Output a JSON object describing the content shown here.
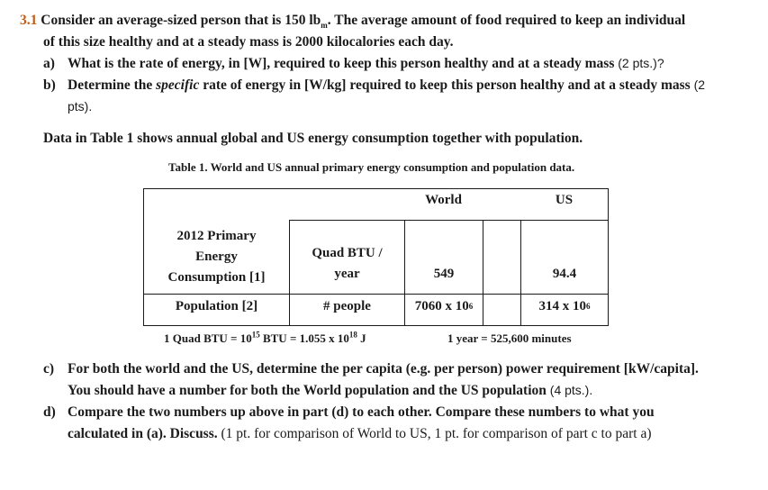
{
  "problem": {
    "number": "3.1",
    "intro_line1": "Consider an average-sized person that is 150 lb",
    "intro_sub": "m",
    "intro_line1_end": ".  The average amount of food required to keep an individual",
    "intro_line2": "of this size healthy and at a steady mass is 2000 kilocalories each day.",
    "a_label": "a)",
    "a_text": "What is the rate of energy, in [W], required to keep this person healthy and at a steady mass",
    "a_pts": "(2 pts.)?",
    "b_label": "b)",
    "b_text_1": "Determine the ",
    "b_italic": "specific",
    "b_text_2": " rate of energy in [W/kg] required to keep this person healthy and at a steady mass",
    "b_pts_1": "(2",
    "b_pts_2": "pts).",
    "data_line": "Data in Table 1 shows annual global and US energy consumption together with population.",
    "table_caption": "Table 1.  World and US annual primary energy consumption and population data.",
    "c_label": "c)",
    "c_text_1": "For both the world and the US, determine the per capita (e.g. per person) power requirement [kW/capita].",
    "c_text_2": "You should have a number for both the World population and the US population",
    "c_pts": "(4 pts.).",
    "d_label": "d)",
    "d_text_1": "Compare the two numbers up above in part (d) to each other.  Compare these numbers to what you",
    "d_text_2": "calculated in (a).  Discuss.",
    "d_pts": "(1 pt. for comparison of World to US, 1 pt. for comparison of part c to part a)"
  },
  "table": {
    "header_world": "World",
    "header_us": "US",
    "row1_label_1": "2012 Primary",
    "row1_label_2": "Energy",
    "row1_label_3": "Consumption [1]",
    "row1_unit_1": "Quad BTU /",
    "row1_unit_2": "year",
    "row1_world": "549",
    "row1_us": "94.4",
    "row2_label": "Population [2]",
    "row2_unit": "# people",
    "row2_world_base": "7060 x 10",
    "row2_world_exp": "6",
    "row2_us_base": "314 x 10",
    "row2_us_exp": "6",
    "footnote_left_1": "1 Quad BTU = 10",
    "footnote_left_exp1": "15",
    "footnote_left_2": " BTU = 1.055 x 10",
    "footnote_left_exp2": "18",
    "footnote_left_3": " J",
    "footnote_right": "1 year = 525,600 minutes"
  }
}
